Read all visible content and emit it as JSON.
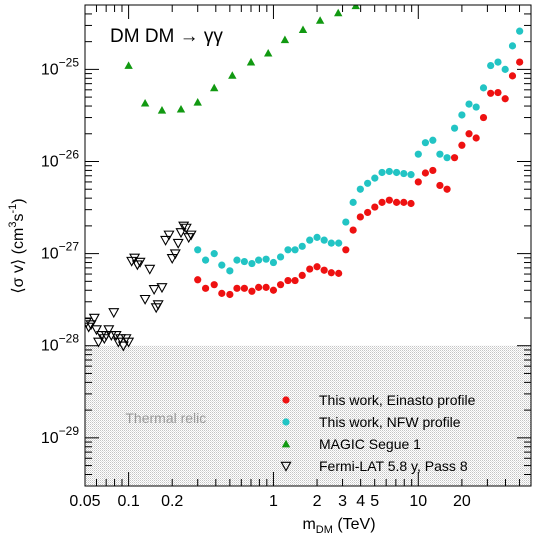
{
  "chart_data": {
    "type": "scatter",
    "title": "DM DM → γγ",
    "xlabel": "m_DM (TeV)",
    "ylabel": "⟨σ v⟩ (cm³s⁻¹)",
    "x_scale": "log",
    "y_scale": "log",
    "xlim": [
      0.05,
      60
    ],
    "ylim": [
      3e-30,
      5e-25
    ],
    "x_tick_labels": [
      {
        "value": 0.05,
        "label": "0.05"
      },
      {
        "value": 0.1,
        "label": "0.1"
      },
      {
        "value": 0.2,
        "label": "0.2"
      },
      {
        "value": 1,
        "label": "1"
      },
      {
        "value": 2,
        "label": "2"
      },
      {
        "value": 3,
        "label": "3"
      },
      {
        "value": 4,
        "label": "4"
      },
      {
        "value": 5,
        "label": "5"
      },
      {
        "value": 10,
        "label": "10"
      },
      {
        "value": 20,
        "label": "20"
      }
    ],
    "y_tick_labels": [
      {
        "value": 1e-29,
        "base": "10",
        "exp": "−29"
      },
      {
        "value": 1e-28,
        "base": "10",
        "exp": "−28"
      },
      {
        "value": 1e-27,
        "base": "10",
        "exp": "−27"
      },
      {
        "value": 1e-26,
        "base": "10",
        "exp": "−26"
      },
      {
        "value": 1e-25,
        "base": "10",
        "exp": "−25"
      }
    ],
    "thermal_relic": {
      "label": "Thermal relic",
      "y_upper": 1e-28,
      "color": "#d8d8d8"
    },
    "legend_position": "bottom-right",
    "series": [
      {
        "name": "This work, Einasto profile",
        "marker": "circle",
        "color": "#ee1111",
        "x": [
          0.3,
          0.34,
          0.39,
          0.44,
          0.5,
          0.56,
          0.63,
          0.71,
          0.79,
          0.89,
          1.0,
          1.12,
          1.26,
          1.41,
          1.58,
          1.78,
          2.0,
          2.24,
          2.51,
          2.82,
          3.16,
          3.55,
          3.98,
          4.47,
          5.01,
          5.62,
          6.31,
          7.08,
          7.94,
          8.91,
          10.0,
          11.2,
          12.6,
          14.1,
          15.8,
          17.8,
          20.0,
          22.4,
          25.1,
          28.2,
          31.6,
          35.5,
          39.8,
          44.7,
          50.1
        ],
        "y": [
          5.2e-28,
          4.2e-28,
          4.6e-28,
          3.7e-28,
          3.6e-28,
          4.2e-28,
          4.2e-28,
          3.9e-28,
          4.3e-28,
          4.3e-28,
          4e-28,
          4.6e-28,
          5.1e-28,
          5.1e-28,
          5.8e-28,
          6.8e-28,
          7.2e-28,
          6.6e-28,
          6.2e-28,
          6.1e-28,
          1.1e-27,
          1.8e-27,
          2.5e-27,
          2.8e-27,
          3.2e-27,
          3.6e-27,
          3.8e-27,
          3.6e-27,
          3.6e-27,
          3.5e-27,
          6e-27,
          7.5e-27,
          8e-27,
          5.5e-27,
          5e-27,
          1.1e-26,
          1.5e-26,
          2e-26,
          1.8e-26,
          3e-26,
          5.5e-26,
          5.6e-26,
          4.8e-26,
          8.5e-26,
          1.2e-25
        ]
      },
      {
        "name": "This work, NFW profile",
        "marker": "circle",
        "color": "#22c4c4",
        "x": [
          0.3,
          0.34,
          0.39,
          0.44,
          0.5,
          0.56,
          0.63,
          0.71,
          0.79,
          0.89,
          1.0,
          1.12,
          1.26,
          1.41,
          1.58,
          1.78,
          2.0,
          2.24,
          2.51,
          2.82,
          3.16,
          3.55,
          3.98,
          4.47,
          5.01,
          5.62,
          6.31,
          7.08,
          7.94,
          8.91,
          10.0,
          11.2,
          12.6,
          14.1,
          15.8,
          17.8,
          20.0,
          22.4,
          25.1,
          28.2,
          31.6,
          35.5,
          39.8,
          44.7,
          50.1
        ],
        "y": [
          1.1e-27,
          8.5e-28,
          1e-27,
          7.5e-28,
          6.5e-28,
          8.5e-28,
          8.2e-28,
          7.8e-28,
          8.5e-28,
          8.7e-28,
          8e-28,
          9.2e-28,
          1.1e-27,
          1.1e-27,
          1.2e-27,
          1.4e-27,
          1.5e-27,
          1.4e-27,
          1.3e-27,
          1.3e-27,
          2.2e-27,
          3.6e-27,
          5e-27,
          5.8e-27,
          6.6e-27,
          7.6e-27,
          7.8e-27,
          7.6e-27,
          7.4e-27,
          7.2e-27,
          1.2e-26,
          1.6e-26,
          1.7e-26,
          1.2e-26,
          1.1e-26,
          2.3e-26,
          3.2e-26,
          4.2e-26,
          3.9e-26,
          6.3e-26,
          1.1e-25,
          1.2e-25,
          1e-25,
          1.8e-25,
          2.6e-25
        ]
      },
      {
        "name": "MAGIC Segue 1",
        "marker": "triangle-up",
        "color": "#119911",
        "x": [
          0.1,
          0.13,
          0.17,
          0.23,
          0.3,
          0.39,
          0.52,
          0.7,
          0.92,
          1.2,
          1.6,
          2.1,
          2.8,
          3.7,
          4.8
        ],
        "y": [
          1.1e-25,
          4.3e-26,
          3.6e-26,
          3.7e-26,
          4.4e-26,
          6.3e-26,
          8.6e-26,
          1.2e-25,
          1.5e-25,
          2.1e-25,
          2.7e-25,
          3.4e-25,
          4.1e-25,
          4.9e-25,
          6e-25
        ]
      },
      {
        "name": "Fermi-LAT 5.8 y, Pass 8",
        "marker": "triangle-down-open",
        "color": "#000000",
        "x": [
          0.051,
          0.053,
          0.055,
          0.058,
          0.06,
          0.062,
          0.065,
          0.068,
          0.07,
          0.073,
          0.076,
          0.079,
          0.082,
          0.085,
          0.088,
          0.092,
          0.096,
          0.1,
          0.105,
          0.11,
          0.115,
          0.12,
          0.13,
          0.14,
          0.15,
          0.155,
          0.16,
          0.17,
          0.18,
          0.19,
          0.2,
          0.21,
          0.22,
          0.23,
          0.24,
          0.25,
          0.26,
          0.27
        ],
        "y": [
          1.8e-28,
          1.6e-28,
          1.7e-28,
          2e-28,
          1.5e-28,
          1.1e-28,
          1.3e-28,
          1.2e-28,
          1.3e-28,
          1.5e-28,
          1.3e-28,
          2.3e-28,
          1.3e-28,
          1.1e-28,
          1.2e-28,
          1e-28,
          1.2e-28,
          1.1e-28,
          8.3e-28,
          9e-28,
          7.6e-28,
          8.1e-28,
          3.2e-28,
          6.8e-28,
          4.1e-28,
          2.6e-28,
          2.8e-28,
          4.3e-28,
          1.4e-27,
          1.6e-27,
          8.9e-28,
          1e-27,
          1.3e-27,
          1.7e-27,
          2e-27,
          1.9e-27,
          1.5e-27,
          1.6e-27
        ]
      }
    ]
  }
}
